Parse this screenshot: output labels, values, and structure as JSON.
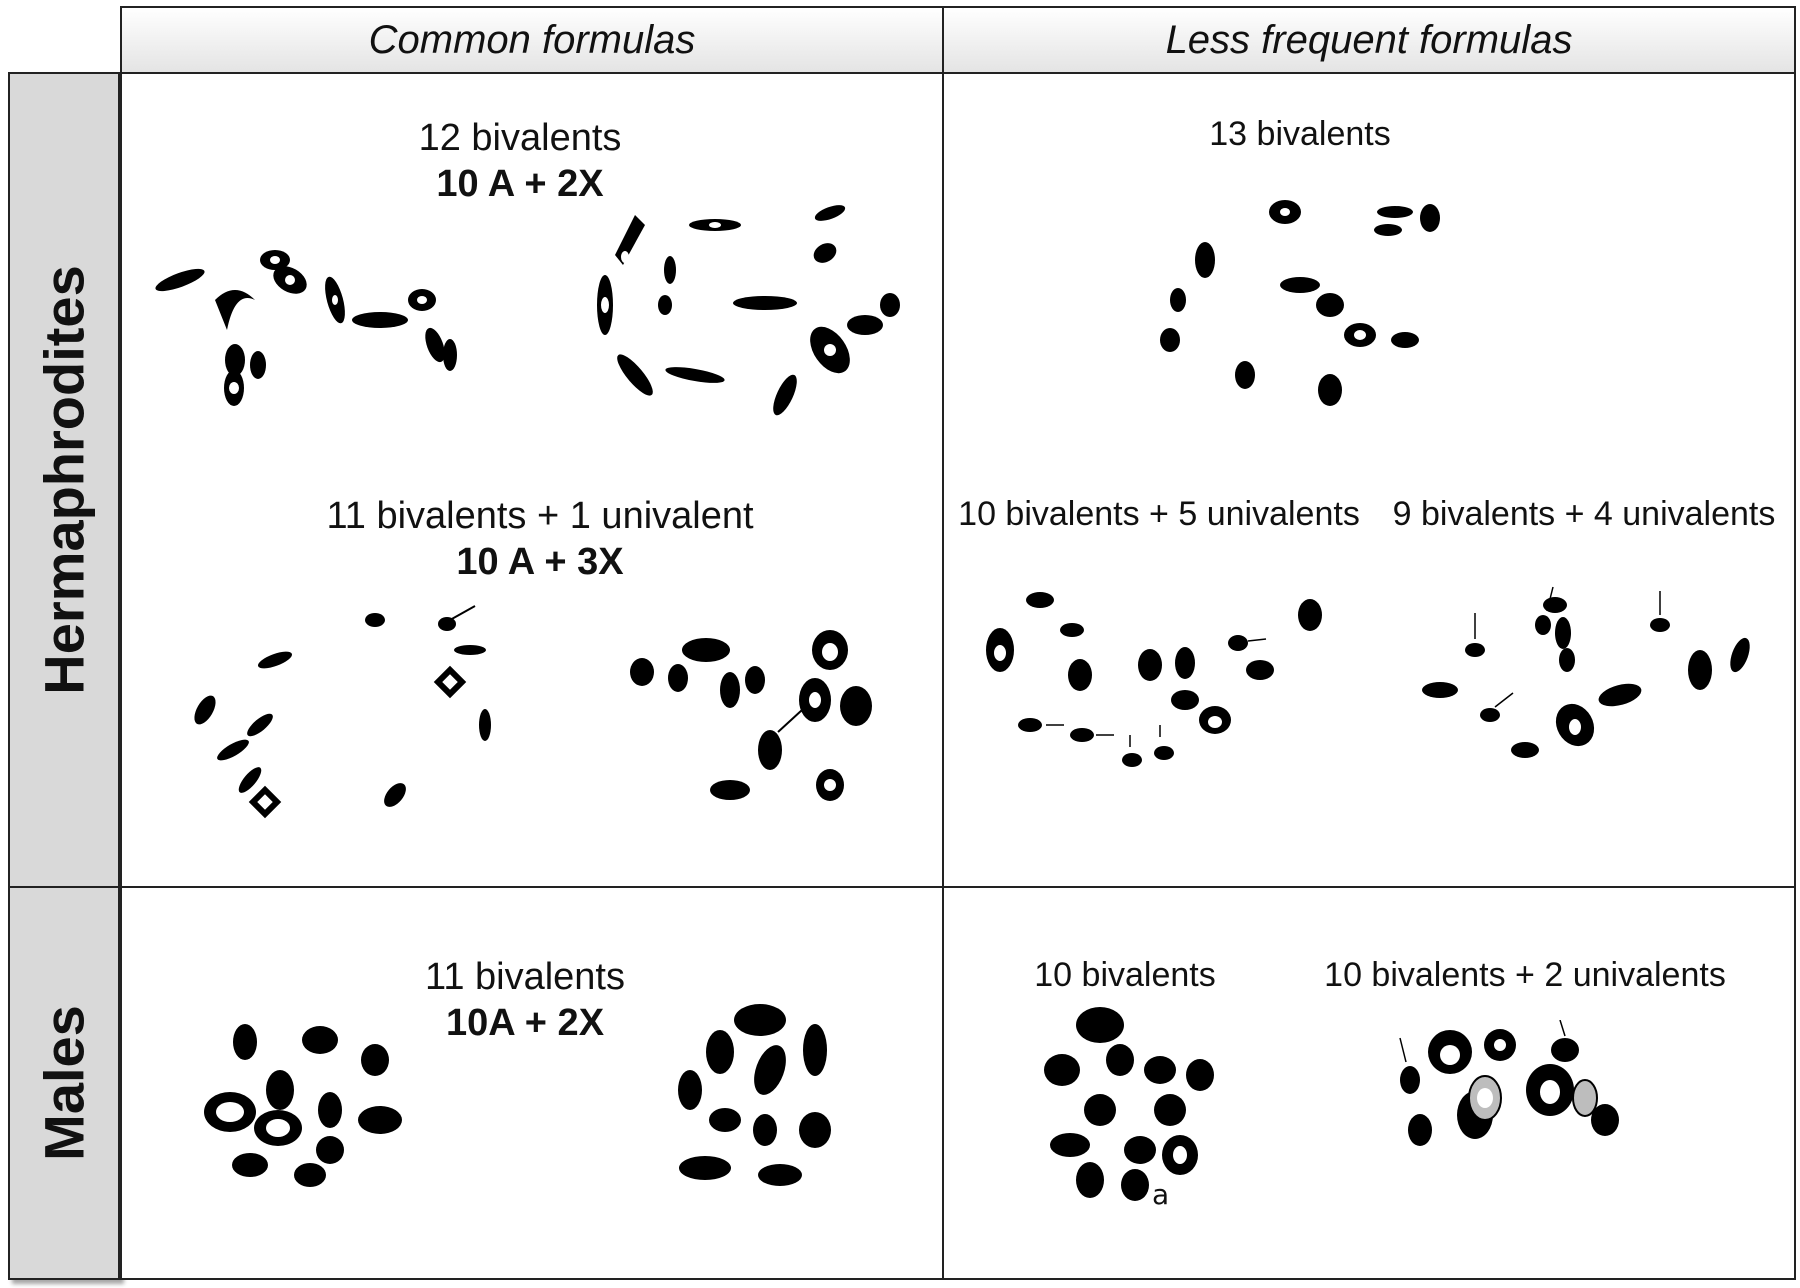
{
  "columns": {
    "common": "Common formulas",
    "less": "Less frequent formulas"
  },
  "rows": {
    "herm": "Hermaphrodites",
    "males": "Males"
  },
  "panels": {
    "h_common_1": {
      "count": "12 bivalents",
      "formula": "10 A + 2X"
    },
    "h_common_2": {
      "count": "11 bivalents + 1 univalent",
      "formula": "10 A + 3X"
    },
    "h_less_1": {
      "count": "13 bivalents"
    },
    "h_less_2": {
      "count": "10 bivalents + 5 univalents"
    },
    "h_less_3": {
      "count": "9 bivalents + 4 univalents"
    },
    "m_common": {
      "count": "11 bivalents",
      "formula": "10A + 2X"
    },
    "m_less_1": {
      "count": "10 bivalents",
      "letter": "a"
    },
    "m_less_2": {
      "count": "10 bivalents + 2 univalents"
    }
  }
}
